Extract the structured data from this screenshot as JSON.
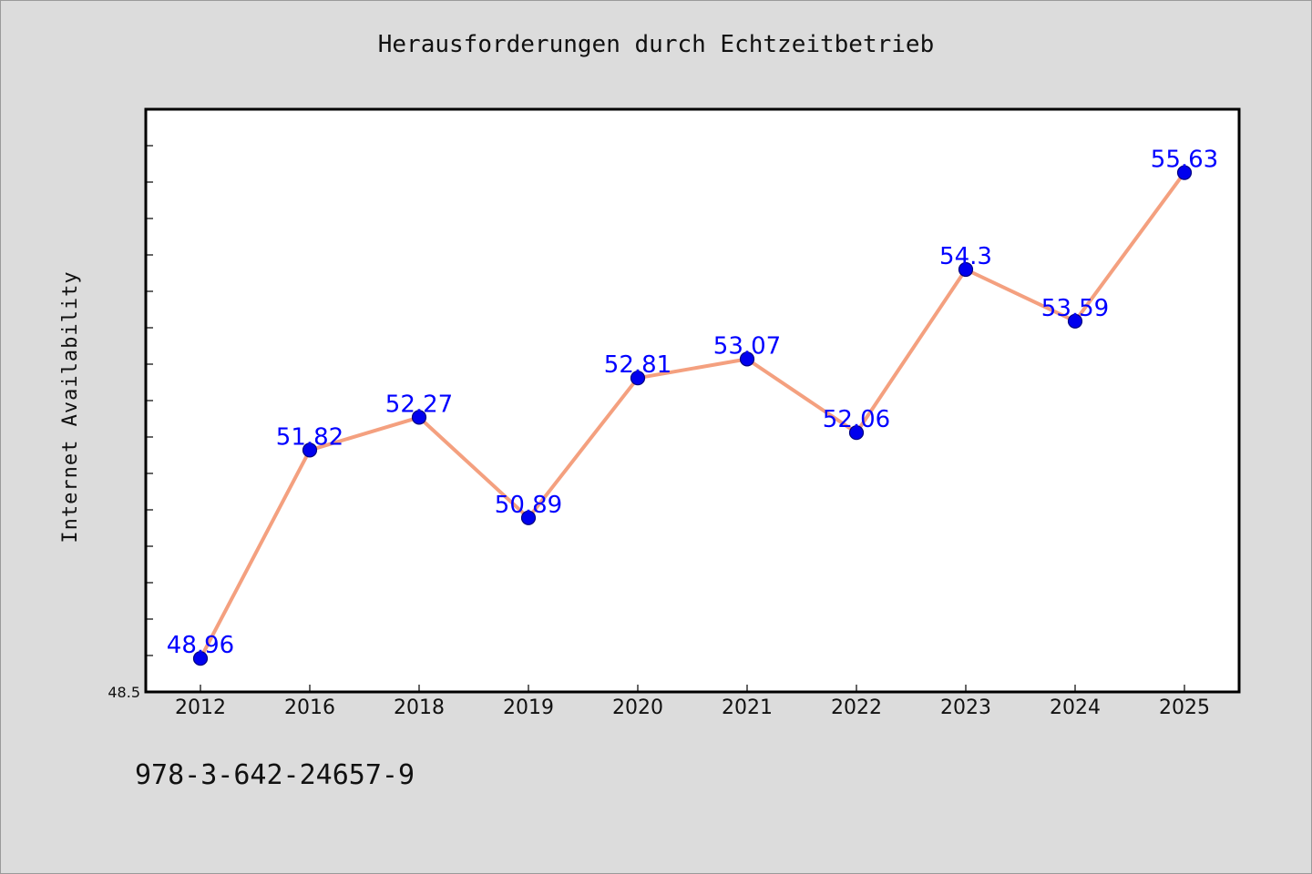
{
  "chart_data": {
    "type": "line",
    "title": "Herausforderungen durch Echtzeitbetrieb",
    "xlabel": "",
    "ylabel": "Internet Availability",
    "categories": [
      "2012",
      "2016",
      "2018",
      "2019",
      "2020",
      "2021",
      "2022",
      "2023",
      "2024",
      "2025"
    ],
    "series": [
      {
        "values": [
          48.96,
          51.82,
          52.27,
          50.89,
          52.81,
          53.07,
          52.06,
          54.3,
          53.59,
          55.63
        ],
        "data_labels": [
          "48.96",
          "51.82",
          "52.27",
          "50.89",
          "52.81",
          "53.07",
          "52.06",
          "54.3",
          "53.59",
          "55.63"
        ]
      }
    ],
    "ylim": [
      48.5,
      56.5
    ],
    "yticks_labeled": [
      "48.5"
    ],
    "grid": false,
    "legend": "none",
    "colors": {
      "line": "#f4a07f",
      "marker_fill": "#0000ee",
      "marker_edge": "#000080",
      "data_label": "#0000ff",
      "plot_background": "#ffffff",
      "figure_background": "#dcdcdc"
    }
  },
  "footer": {
    "isbn": "978-3-642-24657-9"
  }
}
